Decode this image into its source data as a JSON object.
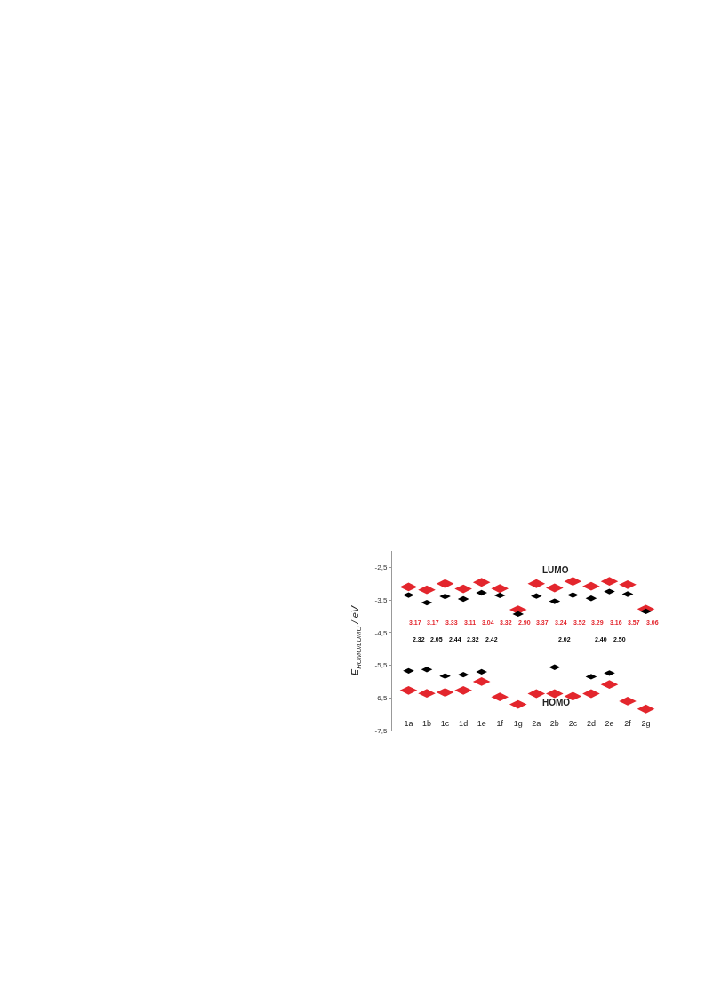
{
  "chart_data": {
    "type": "scatter",
    "marker": "diamond",
    "ylabel": "E$_{HOMO/LUMO}$ / eV",
    "categories": [
      "1a",
      "1b",
      "1c",
      "1d",
      "1e",
      "1f",
      "1g",
      "2a",
      "2b",
      "2c",
      "2d",
      "2e",
      "2f",
      "2g"
    ],
    "series": [
      {
        "color": "#e3262d",
        "x": [
          "1a",
          "1b",
          "1c",
          "1d",
          "1e",
          "1f",
          "1g",
          "2a",
          "2b",
          "2c",
          "2d",
          "2e",
          "2f",
          "2g",
          "1a",
          "1b",
          "1c",
          "1d",
          "1e",
          "1f",
          "1g",
          "2a",
          "2b",
          "2c",
          "2d",
          "2e",
          "2f",
          "2g"
        ],
        "values": [
          -3.1,
          -3.19,
          -3.0,
          -3.16,
          -2.96,
          -3.15,
          -3.8,
          -3.0,
          -3.13,
          -2.93,
          -3.08,
          -2.93,
          -3.03,
          -3.78,
          -6.27,
          -6.36,
          -6.33,
          -6.27,
          -6.0,
          -6.47,
          -6.7,
          -6.37,
          -6.37,
          -6.45,
          -6.37,
          -6.09,
          -6.6,
          -6.84
        ]
      },
      {
        "color": "#000000",
        "x": [
          "1a",
          "1b",
          "1c",
          "1d",
          "1e",
          "1f",
          "1g",
          "2a",
          "2b",
          "2c",
          "2d",
          "2e",
          "2f",
          "2g",
          "1a",
          "1b",
          "1c",
          "1d",
          "1e",
          "2b",
          "2d",
          "2e"
        ],
        "values": [
          -3.35,
          -3.58,
          -3.39,
          -3.47,
          -3.28,
          -3.36,
          -3.93,
          -3.38,
          -3.54,
          -3.35,
          -3.45,
          -3.24,
          -3.32,
          -3.85,
          -5.67,
          -5.63,
          -5.83,
          -5.79,
          -5.7,
          -5.56,
          -5.85,
          -5.74
        ]
      }
    ],
    "ylim": [
      -7.5,
      -2.0
    ],
    "yticks": [
      {
        "value": -2.5,
        "label": "-2,5"
      },
      {
        "value": -3.5,
        "label": "-3,5"
      },
      {
        "value": -4.5,
        "label": "-4,5"
      },
      {
        "value": -5.5,
        "label": "-5,5"
      },
      {
        "value": -6.5,
        "label": "-6,5"
      },
      {
        "value": -7.5,
        "label": "-7,5"
      }
    ],
    "annotations": [
      "LUMO",
      "HOMO",
      "3.17",
      "3.17",
      "3.33",
      "3.11",
      "3.04",
      "3.32",
      "2.90",
      "3.37",
      "3.24",
      "3.52",
      "3.29",
      "3.16",
      "3.57",
      "3.06",
      "2.32",
      "2.05",
      "2.44",
      "2.32",
      "2.42",
      "2.02",
      "2.40",
      "2.50"
    ]
  }
}
